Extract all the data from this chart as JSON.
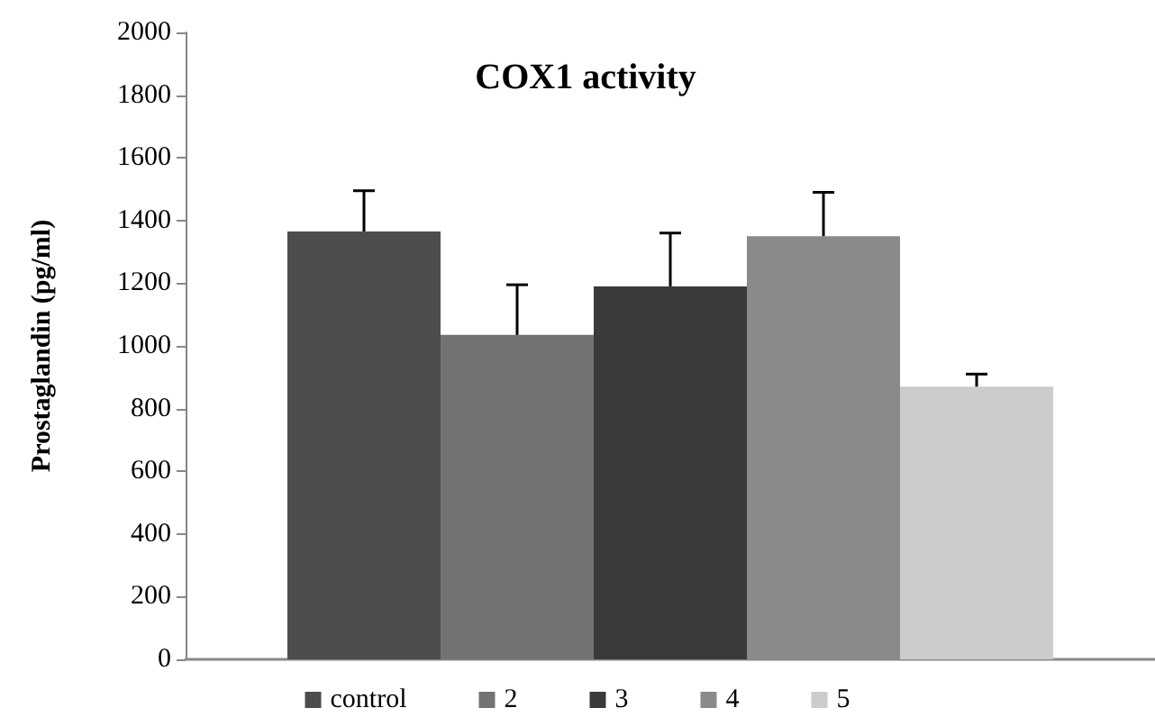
{
  "chart_data": {
    "type": "bar",
    "title": "COX1 activity",
    "ylabel": "Prostaglandin (pg/ml)",
    "categories": [
      null
    ],
    "series": [
      {
        "name": "control",
        "color": "#4d4d4d",
        "values": [
          1365
        ],
        "errors": [
          [
            1365,
            1495
          ]
        ]
      },
      {
        "name": "2",
        "color": "#737373",
        "values": [
          1035
        ],
        "errors": [
          [
            1035,
            1195
          ]
        ]
      },
      {
        "name": "3",
        "color": "#3a3a3a",
        "values": [
          1190
        ],
        "errors": [
          [
            1190,
            1360
          ]
        ]
      },
      {
        "name": "4",
        "color": "#8a8a8a",
        "values": [
          1350
        ],
        "errors": [
          [
            1350,
            1490
          ]
        ]
      },
      {
        "name": "5",
        "color": "#cccccc",
        "values": [
          870
        ],
        "errors": [
          [
            870,
            910
          ]
        ]
      }
    ],
    "ylim": [
      0,
      2000
    ],
    "yticks": [
      0,
      200,
      400,
      600,
      800,
      1000,
      1200,
      1400,
      1600,
      1800,
      2000
    ],
    "grid": false,
    "legend": "bottom"
  }
}
